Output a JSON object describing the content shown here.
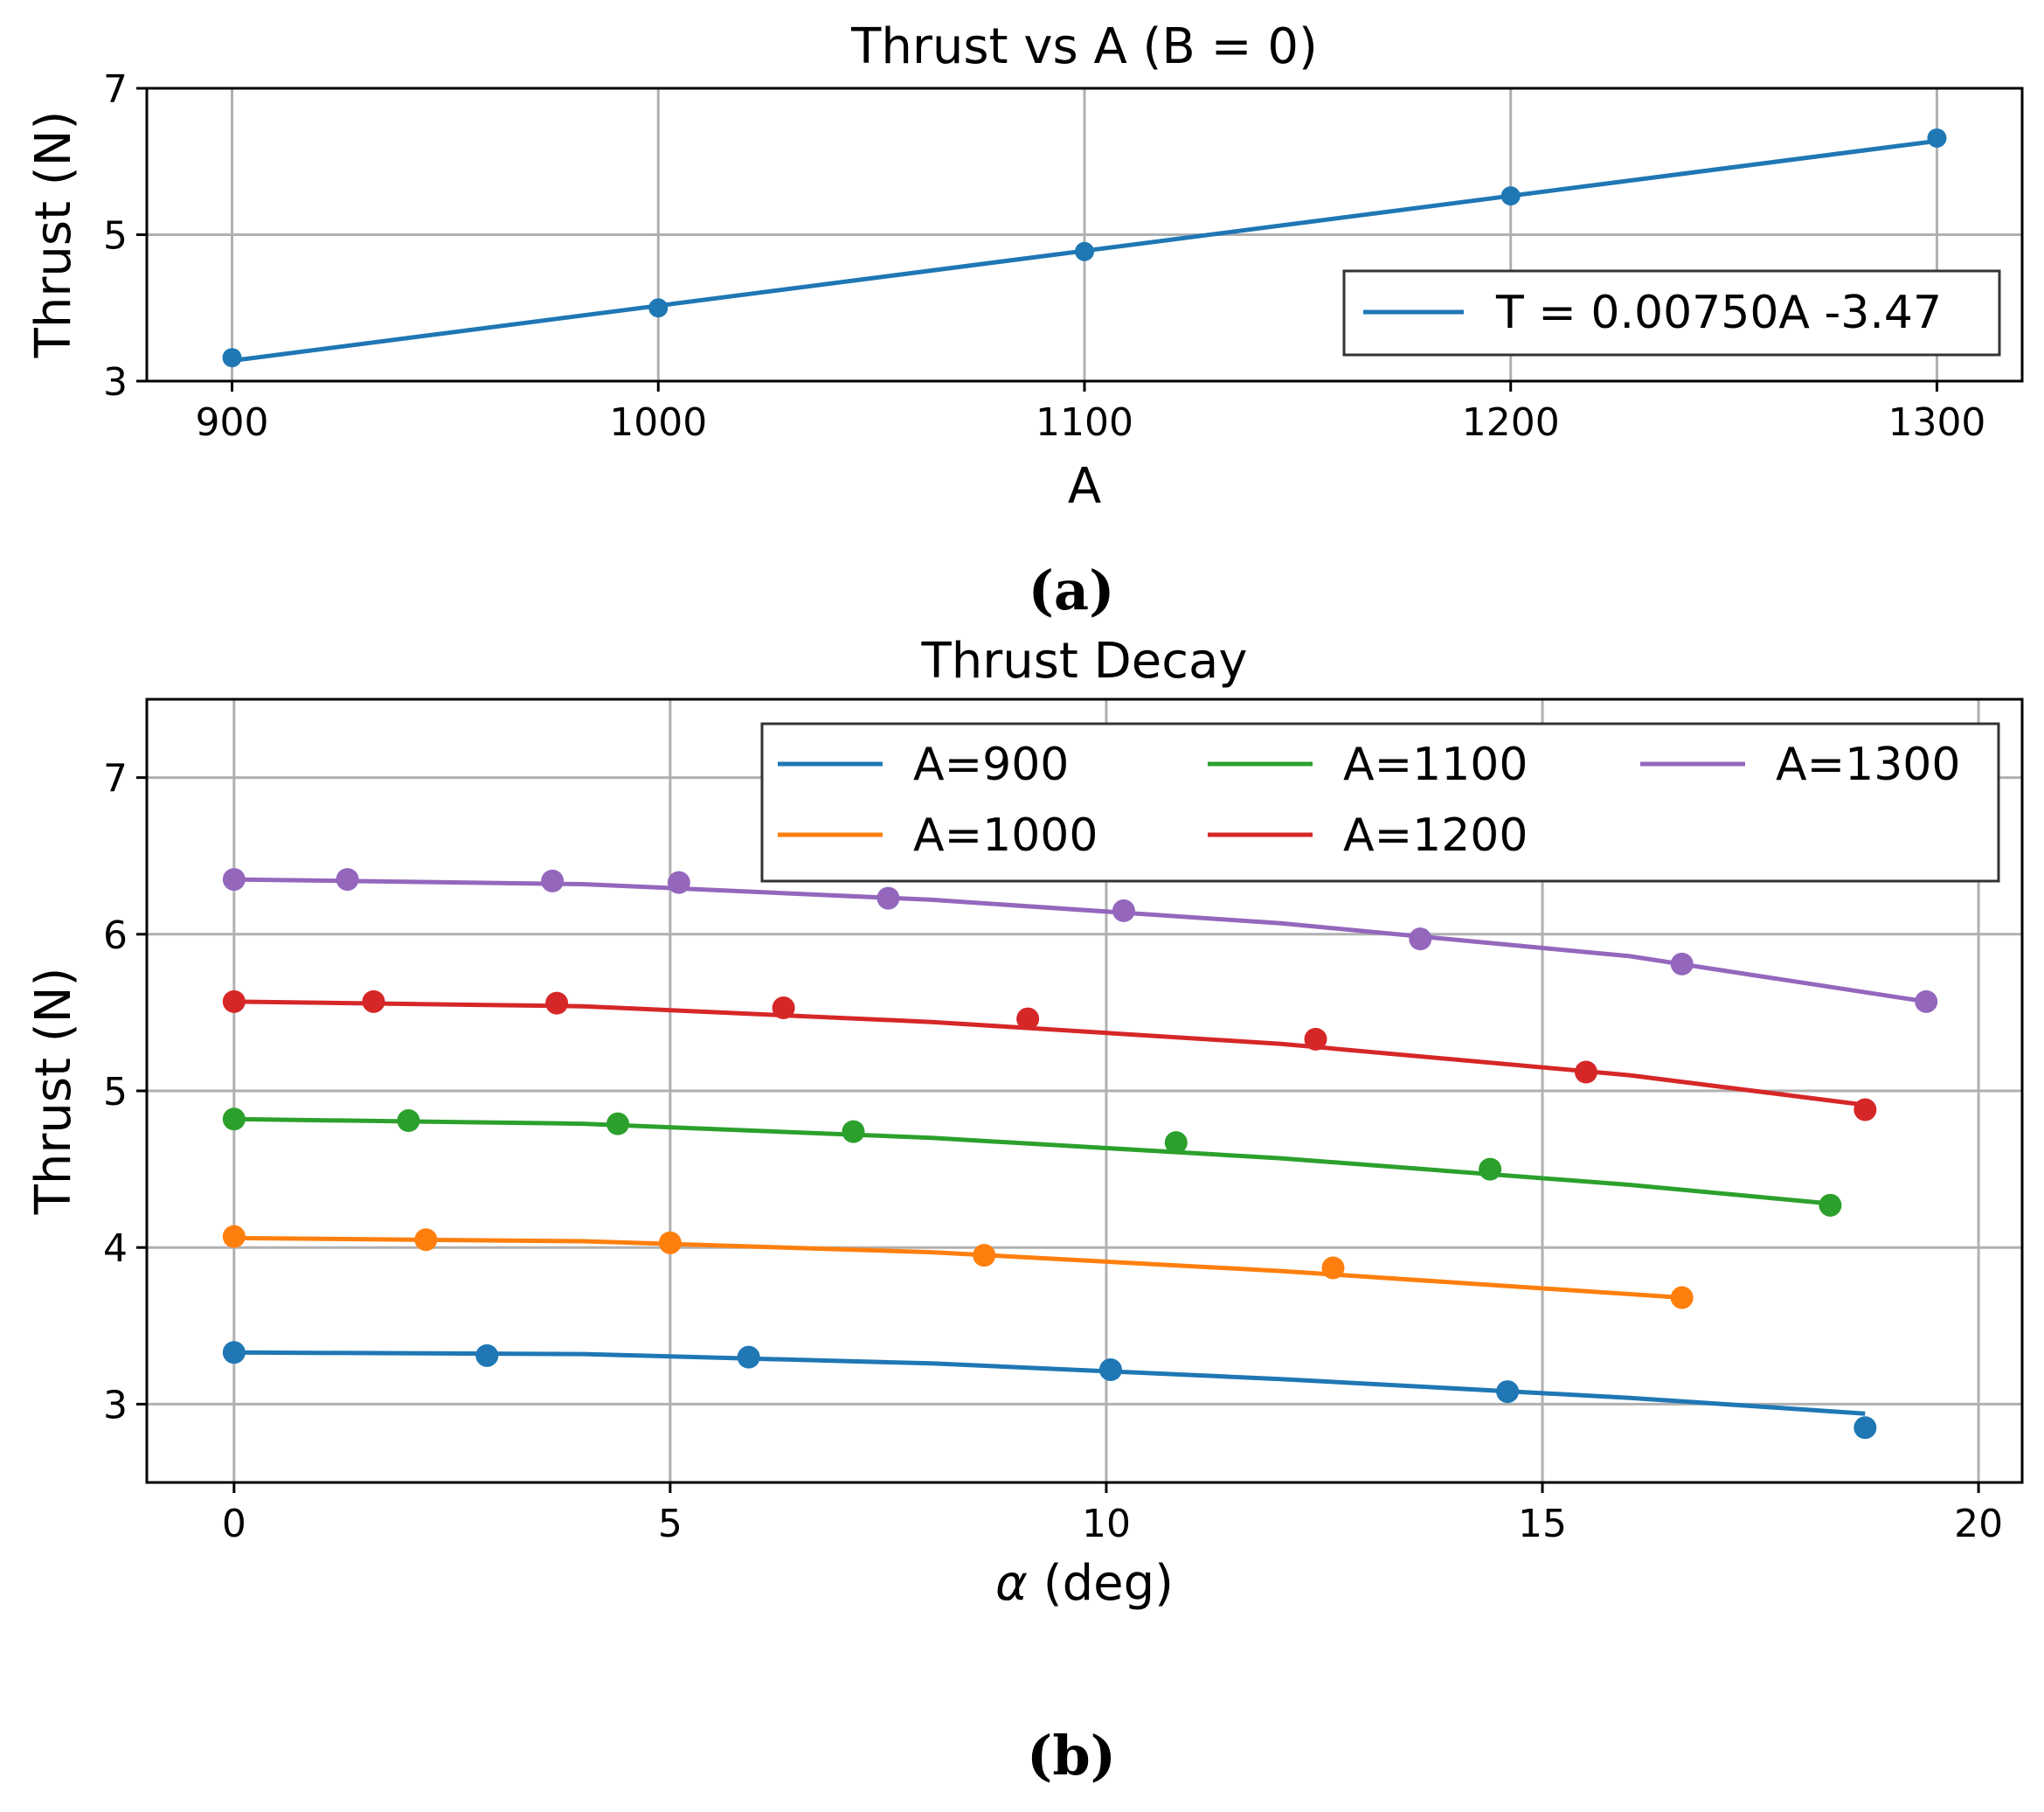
{
  "chart_data": [
    {
      "id": "a",
      "type": "line",
      "title": "Thrust vs A (B = 0)",
      "xlabel": "A",
      "ylabel": "Thrust (N)",
      "caption": "(a)",
      "xlim": [
        880,
        1320
      ],
      "ylim": [
        3,
        7
      ],
      "xticks": [
        900,
        1000,
        1100,
        1200,
        1300
      ],
      "yticks": [
        3,
        5,
        7
      ],
      "grid": true,
      "legend_position": "lower-right",
      "series": [
        {
          "name": "T = 0.00750A -3.47",
          "color": "#1f77b4",
          "points": [
            {
              "x": 900,
              "y": 3.32
            },
            {
              "x": 1000,
              "y": 4.0
            },
            {
              "x": 1100,
              "y": 4.77
            },
            {
              "x": 1200,
              "y": 5.53
            },
            {
              "x": 1300,
              "y": 6.32
            }
          ],
          "fit": [
            {
              "x": 900,
              "y": 3.28
            },
            {
              "x": 1300,
              "y": 6.28
            }
          ]
        }
      ]
    },
    {
      "id": "b",
      "type": "line",
      "title": "Thrust Decay",
      "xlabel": "α (deg)",
      "xlabel_symbol": "α",
      "xlabel_rest": " (deg)",
      "ylabel": "Thrust (N)",
      "caption": "(b)",
      "xlim": [
        -1,
        20.5
      ],
      "ylim": [
        2.5,
        7.5
      ],
      "xticks": [
        0,
        5,
        10,
        15,
        20
      ],
      "yticks": [
        3,
        4,
        5,
        6,
        7
      ],
      "grid": true,
      "legend_position": "upper-right",
      "legend_columns": 3,
      "series": [
        {
          "name": "A=900",
          "color": "#1f77b4",
          "points": [
            {
              "x": 0,
              "y": 3.33
            },
            {
              "x": 2.9,
              "y": 3.31
            },
            {
              "x": 5.9,
              "y": 3.3
            },
            {
              "x": 10.05,
              "y": 3.22
            },
            {
              "x": 14.6,
              "y": 3.08
            },
            {
              "x": 18.7,
              "y": 2.85
            }
          ],
          "fit": [
            {
              "x": 0,
              "y": 3.33
            },
            {
              "x": 4,
              "y": 3.32
            },
            {
              "x": 8,
              "y": 3.26
            },
            {
              "x": 12,
              "y": 3.16
            },
            {
              "x": 16,
              "y": 3.04
            },
            {
              "x": 18.7,
              "y": 2.94
            }
          ]
        },
        {
          "name": "A=1000",
          "color": "#ff7f0e",
          "points": [
            {
              "x": 0,
              "y": 4.07
            },
            {
              "x": 2.2,
              "y": 4.05
            },
            {
              "x": 5.0,
              "y": 4.03
            },
            {
              "x": 8.6,
              "y": 3.95
            },
            {
              "x": 12.6,
              "y": 3.87
            },
            {
              "x": 16.6,
              "y": 3.68
            }
          ],
          "fit": [
            {
              "x": 0,
              "y": 4.06
            },
            {
              "x": 4,
              "y": 4.04
            },
            {
              "x": 8,
              "y": 3.97
            },
            {
              "x": 12,
              "y": 3.85
            },
            {
              "x": 16.6,
              "y": 3.68
            }
          ]
        },
        {
          "name": "A=1100",
          "color": "#2ca02c",
          "points": [
            {
              "x": 0,
              "y": 4.82
            },
            {
              "x": 2.0,
              "y": 4.81
            },
            {
              "x": 4.4,
              "y": 4.79
            },
            {
              "x": 7.1,
              "y": 4.74
            },
            {
              "x": 10.8,
              "y": 4.67
            },
            {
              "x": 14.4,
              "y": 4.5
            },
            {
              "x": 18.3,
              "y": 4.27
            }
          ],
          "fit": [
            {
              "x": 0,
              "y": 4.82
            },
            {
              "x": 4,
              "y": 4.79
            },
            {
              "x": 8,
              "y": 4.7
            },
            {
              "x": 12,
              "y": 4.57
            },
            {
              "x": 16,
              "y": 4.4
            },
            {
              "x": 18.3,
              "y": 4.28
            }
          ]
        },
        {
          "name": "A=1200",
          "color": "#d62728",
          "points": [
            {
              "x": 0,
              "y": 5.57
            },
            {
              "x": 1.6,
              "y": 5.57
            },
            {
              "x": 3.7,
              "y": 5.56
            },
            {
              "x": 6.3,
              "y": 5.53
            },
            {
              "x": 9.1,
              "y": 5.46
            },
            {
              "x": 12.4,
              "y": 5.33
            },
            {
              "x": 15.5,
              "y": 5.12
            },
            {
              "x": 18.7,
              "y": 4.88
            }
          ],
          "fit": [
            {
              "x": 0,
              "y": 5.57
            },
            {
              "x": 4,
              "y": 5.54
            },
            {
              "x": 8,
              "y": 5.44
            },
            {
              "x": 12,
              "y": 5.3
            },
            {
              "x": 16,
              "y": 5.1
            },
            {
              "x": 18.7,
              "y": 4.91
            }
          ]
        },
        {
          "name": "A=1300",
          "color": "#9467bd",
          "points": [
            {
              "x": 0,
              "y": 6.35
            },
            {
              "x": 1.3,
              "y": 6.35
            },
            {
              "x": 3.65,
              "y": 6.34
            },
            {
              "x": 5.1,
              "y": 6.33
            },
            {
              "x": 7.5,
              "y": 6.23
            },
            {
              "x": 10.2,
              "y": 6.15
            },
            {
              "x": 13.6,
              "y": 5.97
            },
            {
              "x": 16.6,
              "y": 5.81
            },
            {
              "x": 19.4,
              "y": 5.57
            }
          ],
          "fit": [
            {
              "x": 0,
              "y": 6.35
            },
            {
              "x": 4,
              "y": 6.32
            },
            {
              "x": 8,
              "y": 6.22
            },
            {
              "x": 12,
              "y": 6.07
            },
            {
              "x": 16,
              "y": 5.86
            },
            {
              "x": 19.4,
              "y": 5.57
            }
          ]
        }
      ]
    }
  ]
}
